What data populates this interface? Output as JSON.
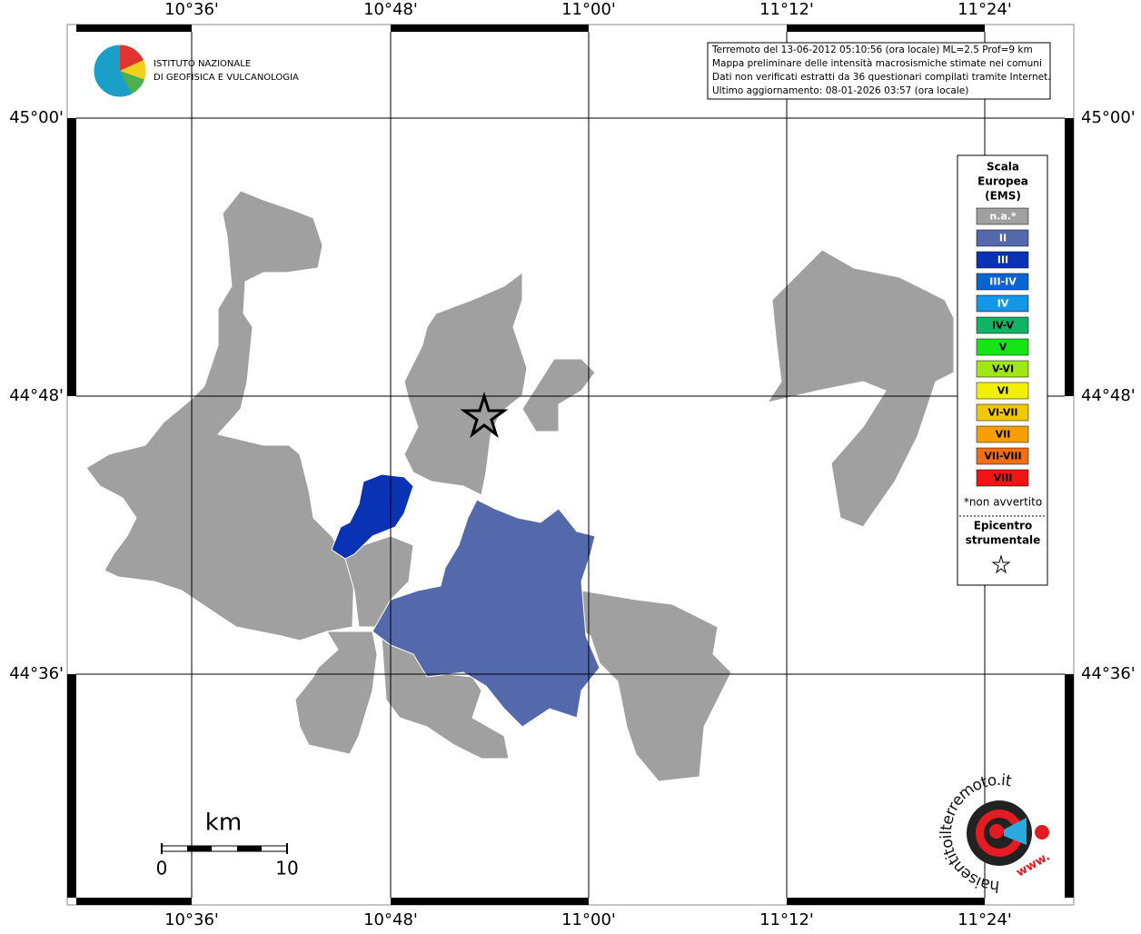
{
  "header": {
    "institute_line1": "ISTITUTO NAZIONALE",
    "institute_line2": "DI GEOFISICA E VULCANOLOGIA"
  },
  "info_box": {
    "lines": [
      "Terremoto del 13-06-2012 05:10:56 (ora locale) ML=2.5 Prof=9 km",
      "Mappa preliminare delle intensità macrosismiche stimate nei comuni",
      "Dati non verificati estratti da 36 questionari compilati tramite Internet.",
      "Ultimo aggiornamento: 08-01-2026 03:57 (ora locale)"
    ]
  },
  "graticule": {
    "longitudes": [
      "10°36'",
      "10°48'",
      "11°00'",
      "11°12'",
      "11°24'"
    ],
    "latitudes": [
      "45°00'",
      "44°48'",
      "44°36'"
    ]
  },
  "legend": {
    "title_lines": [
      "Scala",
      "Europea",
      "(EMS)"
    ],
    "items": [
      {
        "label": "n.a.*",
        "color": "#a0a0a0",
        "text_color": "#ffffff"
      },
      {
        "label": "II",
        "color": "#5468ac",
        "text_color": "#ffffff"
      },
      {
        "label": "III",
        "color": "#0a32b4",
        "text_color": "#ffffff"
      },
      {
        "label": "III-IV",
        "color": "#0a64d2",
        "text_color": "#ffffff"
      },
      {
        "label": "IV",
        "color": "#1496e6",
        "text_color": "#ffffff"
      },
      {
        "label": "IV-V",
        "color": "#10b464",
        "text_color": "#000000"
      },
      {
        "label": "V",
        "color": "#14e614",
        "text_color": "#000000"
      },
      {
        "label": "V-VI",
        "color": "#a0e614",
        "text_color": "#000000"
      },
      {
        "label": "VI",
        "color": "#f0f000",
        "text_color": "#000000"
      },
      {
        "label": "VI-VII",
        "color": "#f0c800",
        "text_color": "#000000"
      },
      {
        "label": "VII",
        "color": "#f5a000",
        "text_color": "#000000"
      },
      {
        "label": "VII-VIII",
        "color": "#f06e14",
        "text_color": "#000000"
      },
      {
        "label": "VIII",
        "color": "#f01414",
        "text_color": "#000000"
      }
    ],
    "note": "*non avvertito",
    "epicenter_lines": [
      "Epicentro",
      "strumentale"
    ]
  },
  "scale_bar": {
    "unit": "km",
    "start": "0",
    "end": "10"
  },
  "logo": {
    "text": "haisentitoilterremoto.it",
    "www": "www."
  }
}
